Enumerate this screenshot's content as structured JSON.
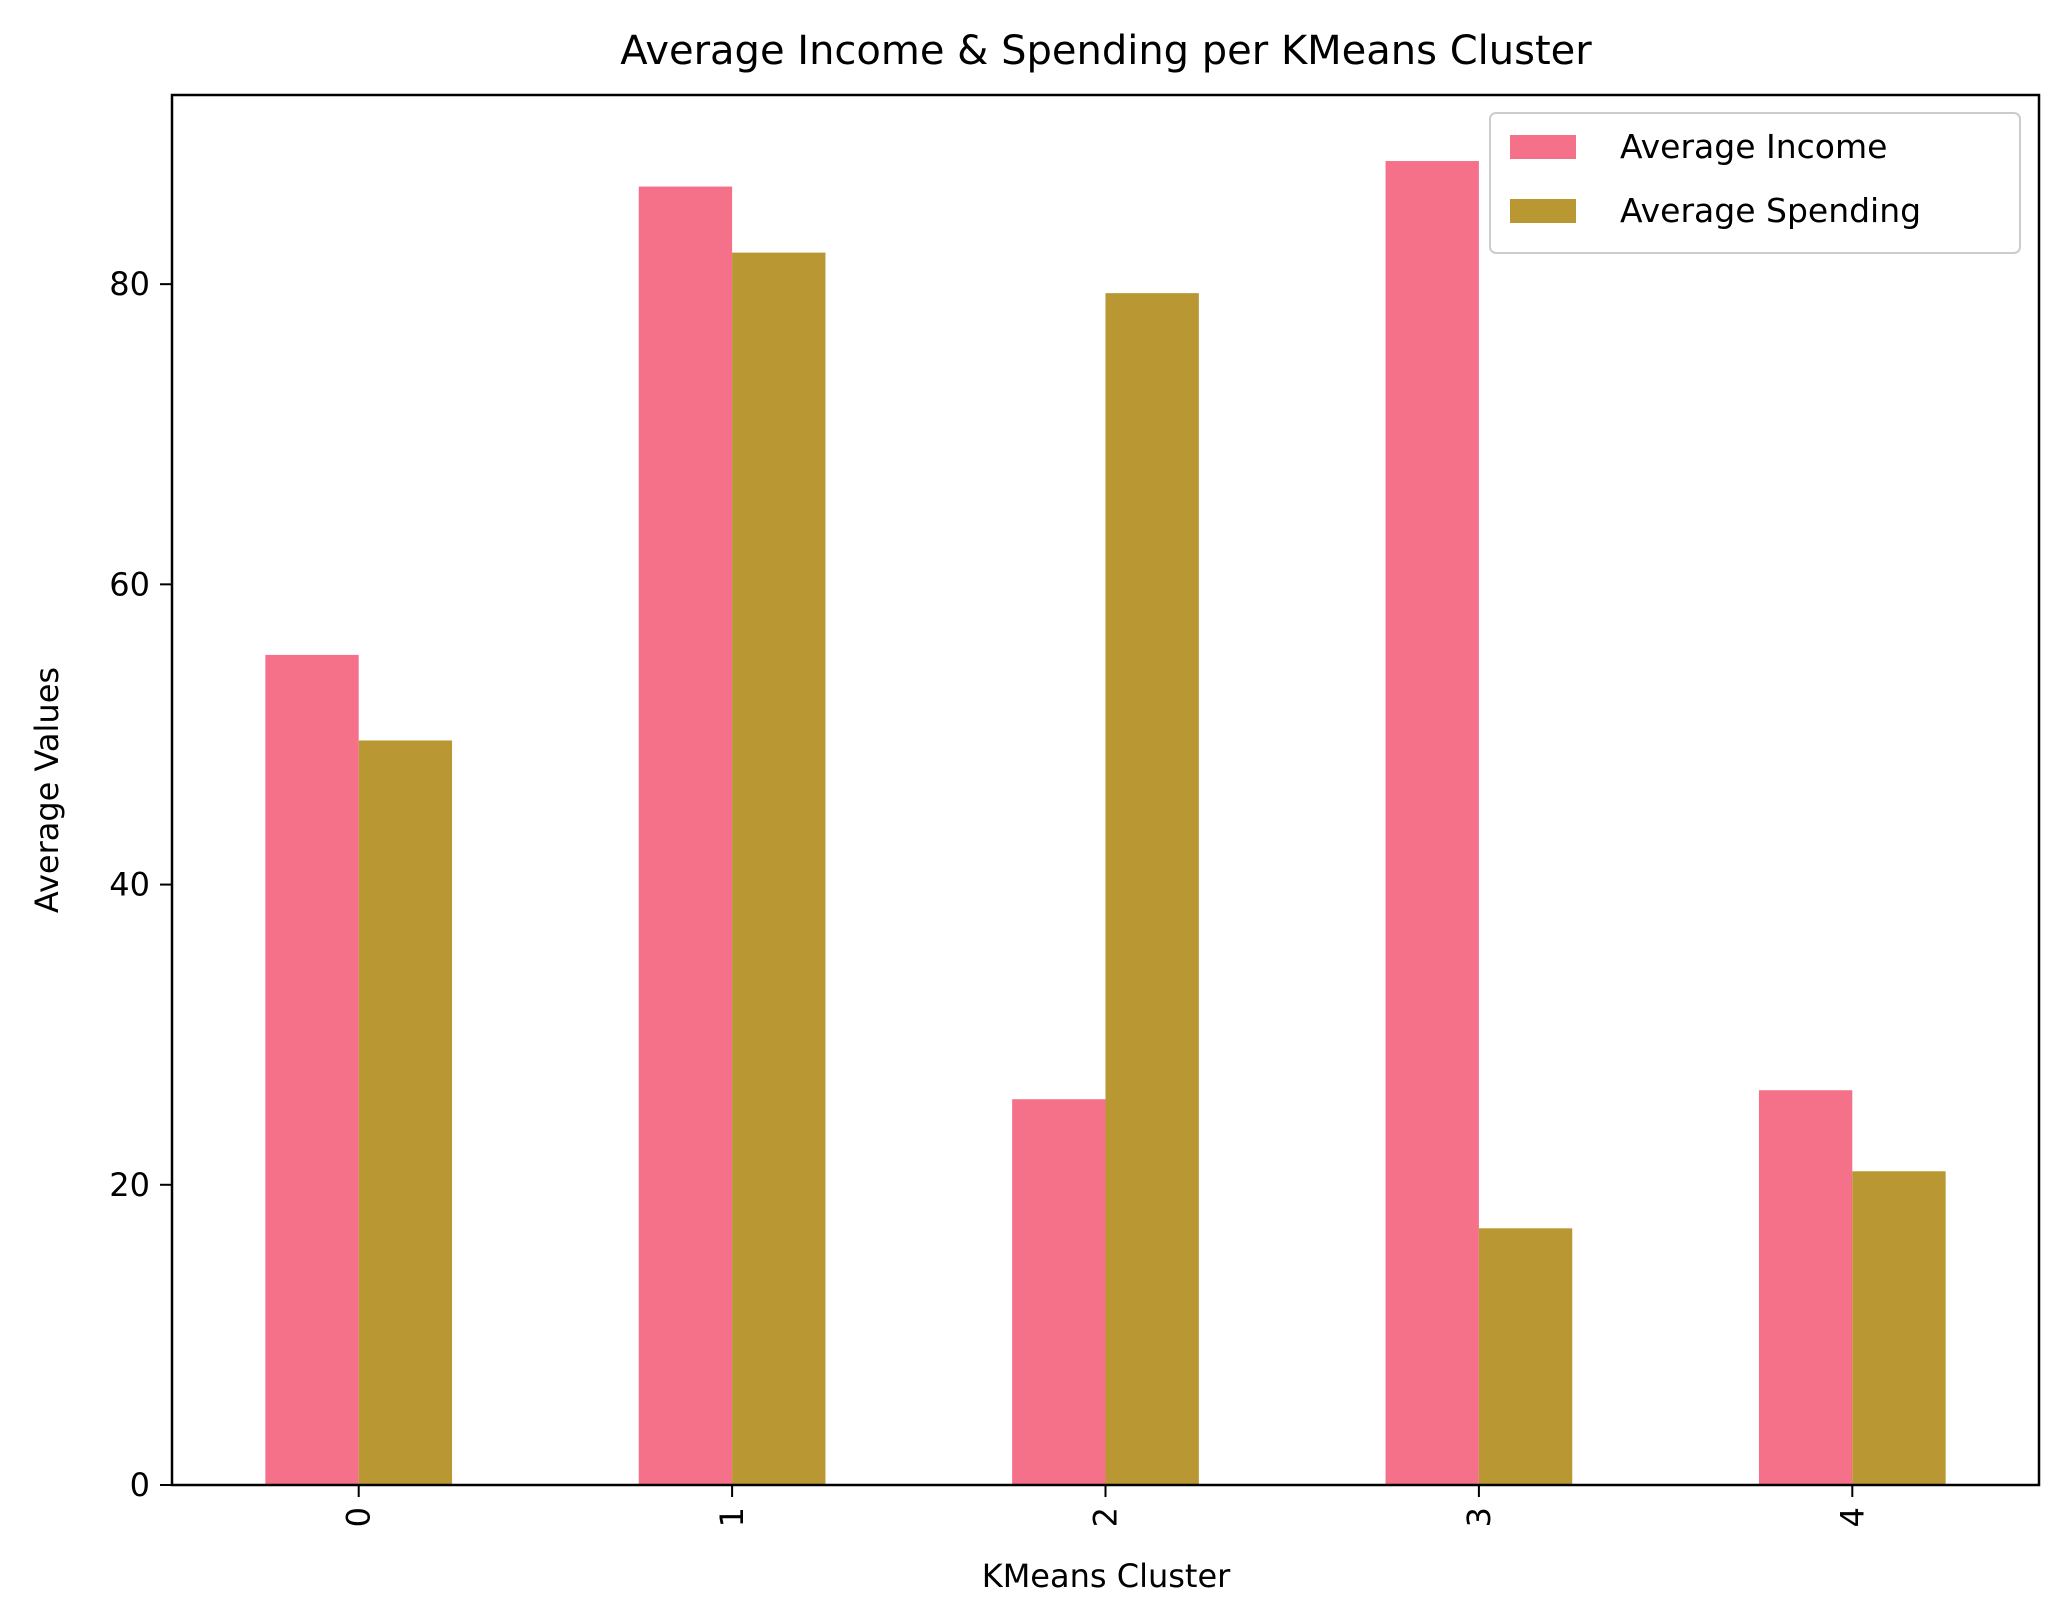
{
  "chart_data": {
    "type": "bar",
    "title": "Average Income & Spending per KMeans Cluster",
    "xlabel": "KMeans Cluster",
    "ylabel": "Average Values",
    "categories": [
      "0",
      "1",
      "2",
      "3",
      "4"
    ],
    "series": [
      {
        "name": "Average Income",
        "color": "#f5718a",
        "values": [
          55.3,
          86.5,
          25.7,
          88.2,
          26.3
        ]
      },
      {
        "name": "Average Spending",
        "color": "#b99732",
        "values": [
          49.6,
          82.1,
          79.4,
          17.1,
          20.9
        ]
      }
    ],
    "ylim": [
      0,
      92.6
    ],
    "yticks": [
      0,
      20,
      40,
      60,
      80
    ],
    "xtick_rotation": "vertical",
    "legend_position": "top-right",
    "grid": false
  }
}
